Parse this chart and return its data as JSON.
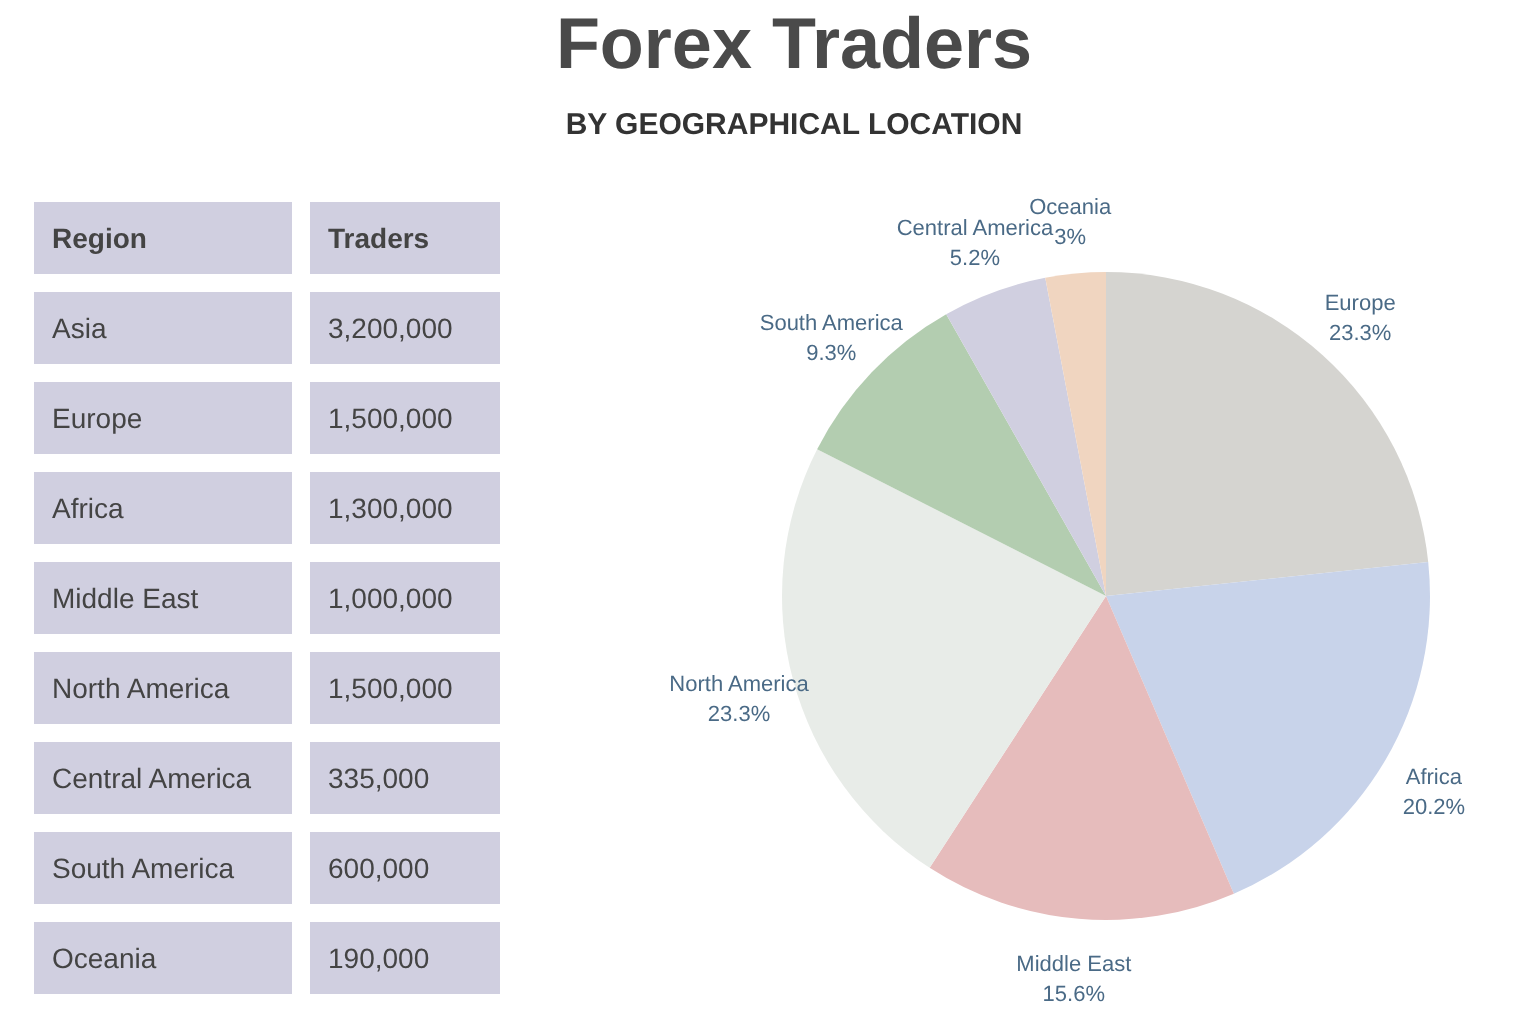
{
  "chart_data": [
    {
      "type": "other",
      "xlabel": "Region",
      "ylabel": "Traders",
      "categories": [
        "Asia",
        "Europe",
        "Africa",
        "Middle East",
        "North America",
        "Central America",
        "South America",
        "Oceania"
      ],
      "values": [
        3200000,
        1500000,
        1300000,
        1000000,
        1500000,
        335000,
        600000,
        190000
      ],
      "value_labels": [
        "3,200,000",
        "1,500,000",
        "1,300,000",
        "1,000,000",
        "1,500,000",
        "335,000",
        "600,000",
        "190,000"
      ],
      "color": "#d0cfe0"
    },
    {
      "type": "pie",
      "title": "Forex Traders",
      "subtitle": "BY GEOGRAPHICAL LOCATION",
      "categories": [
        "Europe",
        "Africa",
        "Middle East",
        "North America",
        "South America",
        "Central America",
        "Oceania"
      ],
      "values": [
        23.3,
        20.2,
        15.6,
        23.3,
        9.3,
        5.2,
        3
      ],
      "value_labels": [
        "23.3%",
        "20.2%",
        "15.6%",
        "23.3%",
        "9.3%",
        "5.2%",
        "3%"
      ],
      "colors": [
        "#d5d4d0",
        "#c8d3ea",
        "#e6bcbc",
        "#e8ece8",
        "#b3cdb0",
        "#d0cfe0",
        "#f0d5c0"
      ]
    }
  ]
}
